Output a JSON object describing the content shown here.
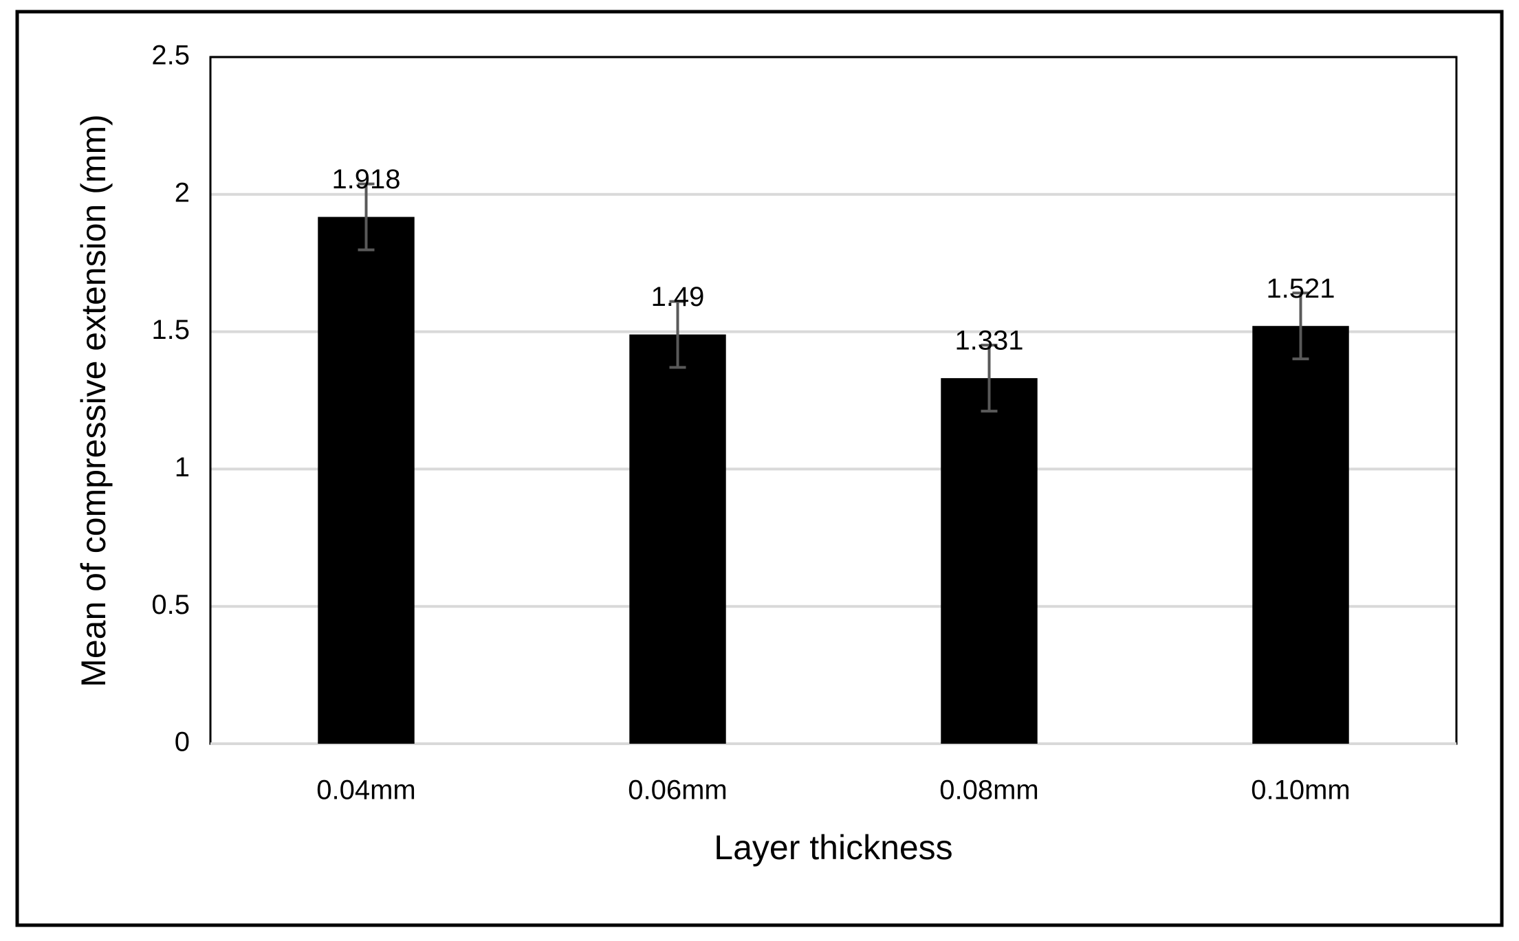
{
  "chart_data": {
    "type": "bar",
    "x_label": "Layer thickness",
    "y_label": "Mean of compressive extension (mm)",
    "categories": [
      "0.04mm",
      "0.06mm",
      "0.08mm",
      "0.10mm"
    ],
    "values": [
      1.918,
      1.49,
      1.331,
      1.521
    ],
    "errors": [
      0.12,
      0.12,
      0.12,
      0.12
    ],
    "color": "#000000",
    "error_color": "#595959",
    "ylim": [
      0,
      2.5
    ],
    "yticks": [
      0,
      0.5,
      1,
      1.5,
      2,
      2.5
    ],
    "grid": true
  }
}
